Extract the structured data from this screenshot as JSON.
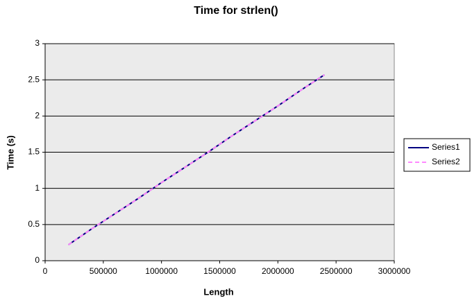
{
  "chart_data": {
    "type": "line",
    "title": "Time for strlen()",
    "x_label": "Length",
    "y_label": "Time (s)",
    "x": [
      200000,
      400000,
      600000,
      800000,
      1000000,
      1200000,
      1400000,
      1600000,
      1800000,
      2000000,
      2200000,
      2400000
    ],
    "series": [
      {
        "name": "Series1",
        "color": "#000080",
        "dash": false,
        "values": [
          0.22,
          0.44,
          0.65,
          0.86,
          1.08,
          1.29,
          1.5,
          1.72,
          1.93,
          2.14,
          2.36,
          2.57
        ]
      },
      {
        "name": "Series2",
        "color": "#ff88ff",
        "dash": true,
        "values": [
          0.22,
          0.44,
          0.65,
          0.86,
          1.08,
          1.29,
          1.5,
          1.72,
          1.93,
          2.14,
          2.36,
          2.57
        ]
      }
    ],
    "xlim": [
      0,
      3000000
    ],
    "xticks": [
      0,
      500000,
      1000000,
      1500000,
      2000000,
      2500000,
      3000000
    ],
    "ylim": [
      0,
      3
    ],
    "yticks": [
      0,
      0.5,
      1,
      1.5,
      2,
      2.5,
      3
    ],
    "grid": true,
    "legend": "right"
  }
}
